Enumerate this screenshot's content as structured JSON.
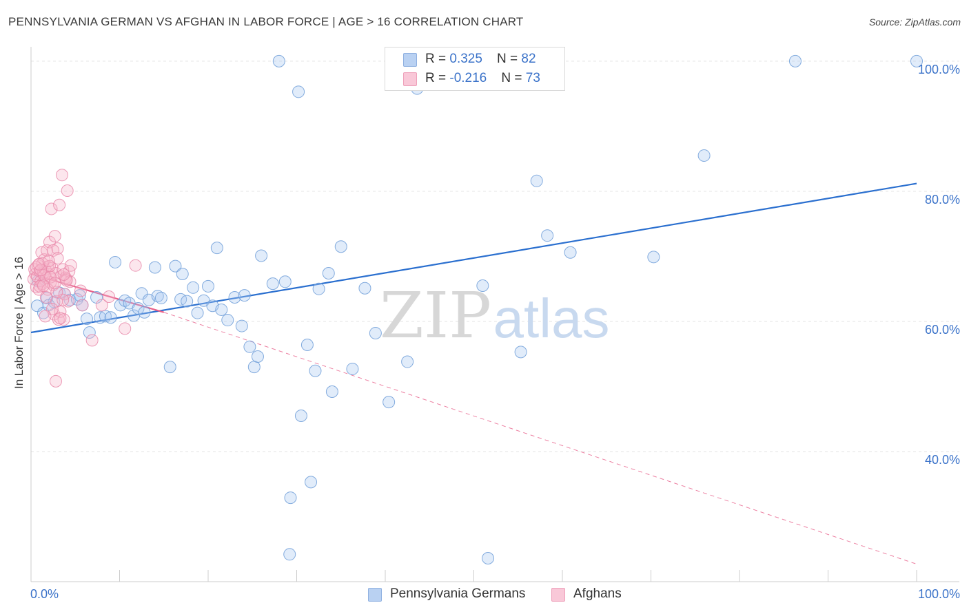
{
  "title": "PENNSYLVANIA GERMAN VS AFGHAN IN LABOR FORCE | AGE > 16 CORRELATION CHART",
  "source": "Source: ZipAtlas.com",
  "watermark": {
    "zip": "ZIP",
    "atlas": "atlas"
  },
  "legend": {
    "blue": {
      "r_label": "R = ",
      "r_value": "0.325",
      "n_label": "N = ",
      "n_value": "82"
    },
    "pink": {
      "r_label": "R = ",
      "r_value": "-0.216",
      "n_label": "N = ",
      "n_value": "73"
    }
  },
  "colors": {
    "blue": "#8fb8ec",
    "blue_line": "#2a6fcf",
    "pink": "#f4a6c0",
    "pink_line": "#e8608a",
    "axis_text": "#3a72c9"
  },
  "chart_data": {
    "type": "scatter",
    "ylabel": "In Labor Force | Age > 16",
    "xlim": [
      0,
      100
    ],
    "ylim": [
      20,
      102
    ],
    "x_tick_labels": [
      {
        "x": 0,
        "label": "0.0%"
      },
      {
        "x": 100,
        "label": "100.0%"
      }
    ],
    "y_tick_labels": [
      {
        "y": 40,
        "label": "40.0%"
      },
      {
        "y": 60,
        "label": "60.0%"
      },
      {
        "y": 80,
        "label": "80.0%"
      },
      {
        "y": 100,
        "label": "100.0%"
      }
    ],
    "grid": true,
    "series": [
      {
        "name": "Pennsylvania Germans",
        "color": "#8fb8ec",
        "trend": {
          "x": [
            0,
            100
          ],
          "y": [
            58.3,
            81.2
          ],
          "style": "solid"
        },
        "points": [
          [
            0.7,
            62.4
          ],
          [
            1.4,
            61.3
          ],
          [
            1.8,
            63.6
          ],
          [
            2.6,
            63.0
          ],
          [
            3.2,
            64.4
          ],
          [
            3.8,
            64.2
          ],
          [
            4.4,
            63.3
          ],
          [
            5.2,
            63.4
          ],
          [
            5.8,
            62.5
          ],
          [
            6.3,
            60.4
          ],
          [
            6.6,
            58.3
          ],
          [
            7.4,
            63.7
          ],
          [
            7.8,
            60.6
          ],
          [
            8.4,
            60.8
          ],
          [
            9.0,
            60.6
          ],
          [
            9.5,
            69.1
          ],
          [
            10.1,
            62.5
          ],
          [
            10.6,
            63.2
          ],
          [
            11.1,
            62.8
          ],
          [
            11.6,
            60.9
          ],
          [
            12.1,
            62.0
          ],
          [
            12.5,
            64.3
          ],
          [
            12.8,
            61.4
          ],
          [
            13.3,
            63.3
          ],
          [
            14.0,
            68.3
          ],
          [
            14.3,
            63.9
          ],
          [
            14.7,
            63.6
          ],
          [
            15.7,
            53.0
          ],
          [
            16.3,
            68.5
          ],
          [
            16.9,
            63.4
          ],
          [
            17.1,
            67.3
          ],
          [
            17.6,
            63.1
          ],
          [
            18.3,
            65.2
          ],
          [
            18.8,
            61.3
          ],
          [
            19.5,
            63.2
          ],
          [
            20.0,
            65.4
          ],
          [
            20.5,
            62.4
          ],
          [
            21.0,
            71.3
          ],
          [
            21.5,
            61.8
          ],
          [
            22.2,
            60.2
          ],
          [
            23.0,
            63.7
          ],
          [
            23.8,
            59.3
          ],
          [
            24.1,
            64.0
          ],
          [
            24.7,
            56.1
          ],
          [
            25.2,
            53.0
          ],
          [
            25.6,
            54.6
          ],
          [
            26.0,
            70.1
          ],
          [
            27.3,
            65.8
          ],
          [
            28.0,
            100.0
          ],
          [
            28.7,
            66.1
          ],
          [
            29.2,
            24.2
          ],
          [
            29.3,
            32.9
          ],
          [
            30.2,
            95.3
          ],
          [
            30.5,
            45.5
          ],
          [
            31.2,
            56.4
          ],
          [
            31.6,
            35.3
          ],
          [
            32.1,
            52.4
          ],
          [
            32.5,
            65.0
          ],
          [
            33.6,
            67.4
          ],
          [
            34.0,
            49.2
          ],
          [
            35.0,
            71.5
          ],
          [
            36.3,
            52.7
          ],
          [
            37.7,
            65.1
          ],
          [
            38.9,
            58.2
          ],
          [
            40.4,
            47.6
          ],
          [
            42.3,
            100.0
          ],
          [
            42.5,
            53.8
          ],
          [
            43.6,
            95.8
          ],
          [
            45.1,
            100.0
          ],
          [
            51.0,
            65.5
          ],
          [
            51.6,
            23.6
          ],
          [
            55.3,
            55.3
          ],
          [
            57.1,
            81.6
          ],
          [
            58.3,
            73.2
          ],
          [
            60.9,
            70.6
          ],
          [
            70.3,
            69.9
          ],
          [
            76.0,
            85.5
          ],
          [
            86.3,
            100.0
          ],
          [
            100.0,
            100.0
          ],
          [
            0.8,
            66.2
          ],
          [
            2.0,
            62.5
          ],
          [
            5.5,
            64.0
          ]
        ]
      },
      {
        "name": "Afghans",
        "color": "#f4a6c0",
        "trend": {
          "x": [
            0,
            15
          ],
          "y": [
            67.3,
            61.4
          ],
          "style": "solid",
          "extended": {
            "x": [
              15,
              100
            ],
            "y": [
              61.4,
              22.7
            ],
            "style": "dashed"
          }
        },
        "points": [
          [
            0.3,
            66.5
          ],
          [
            0.4,
            68.0
          ],
          [
            0.5,
            67.3
          ],
          [
            0.6,
            65.3
          ],
          [
            0.7,
            66.9
          ],
          [
            0.8,
            68.6
          ],
          [
            0.9,
            64.9
          ],
          [
            1.0,
            67.7
          ],
          [
            1.1,
            66.2
          ],
          [
            1.2,
            70.6
          ],
          [
            1.3,
            65.8
          ],
          [
            1.4,
            67.5
          ],
          [
            1.5,
            69.5
          ],
          [
            1.6,
            68.0
          ],
          [
            1.7,
            66.7
          ],
          [
            1.8,
            70.9
          ],
          [
            1.9,
            68.4
          ],
          [
            2.0,
            67.3
          ],
          [
            2.1,
            72.2
          ],
          [
            2.2,
            66.0
          ],
          [
            2.3,
            77.3
          ],
          [
            2.4,
            68.2
          ],
          [
            2.5,
            65.6
          ],
          [
            2.6,
            61.1
          ],
          [
            2.7,
            73.1
          ],
          [
            2.8,
            67.4
          ],
          [
            2.9,
            63.1
          ],
          [
            3.0,
            71.2
          ],
          [
            3.1,
            60.3
          ],
          [
            3.2,
            77.9
          ],
          [
            3.3,
            61.5
          ],
          [
            3.4,
            66.9
          ],
          [
            3.5,
            82.5
          ],
          [
            3.6,
            68.0
          ],
          [
            3.7,
            60.3
          ],
          [
            3.8,
            64.2
          ],
          [
            3.9,
            66.7
          ],
          [
            4.0,
            66.5
          ],
          [
            4.1,
            80.1
          ],
          [
            4.2,
            63.1
          ],
          [
            4.3,
            67.7
          ],
          [
            4.4,
            66.1
          ],
          [
            4.5,
            68.6
          ],
          [
            5.6,
            64.7
          ],
          [
            5.8,
            62.5
          ],
          [
            6.9,
            57.1
          ],
          [
            8.0,
            62.5
          ],
          [
            8.8,
            63.8
          ],
          [
            10.6,
            58.9
          ],
          [
            11.8,
            68.6
          ],
          [
            2.8,
            50.8
          ],
          [
            1.5,
            67.1
          ],
          [
            2.1,
            68.5
          ],
          [
            2.5,
            70.9
          ],
          [
            3.0,
            69.7
          ],
          [
            1.0,
            65.4
          ],
          [
            1.3,
            68.9
          ],
          [
            1.9,
            64.9
          ],
          [
            2.4,
            61.9
          ],
          [
            0.6,
            68.3
          ],
          [
            3.6,
            63.3
          ],
          [
            2.9,
            64.5
          ],
          [
            2.2,
            66.8
          ],
          [
            1.7,
            63.7
          ],
          [
            1.1,
            67.9
          ],
          [
            1.6,
            60.8
          ],
          [
            2.7,
            65.9
          ],
          [
            3.3,
            60.5
          ],
          [
            4.0,
            66.3
          ],
          [
            0.9,
            68.8
          ],
          [
            1.4,
            65.5
          ],
          [
            2.0,
            69.3
          ],
          [
            3.7,
            67.2
          ]
        ]
      }
    ]
  }
}
